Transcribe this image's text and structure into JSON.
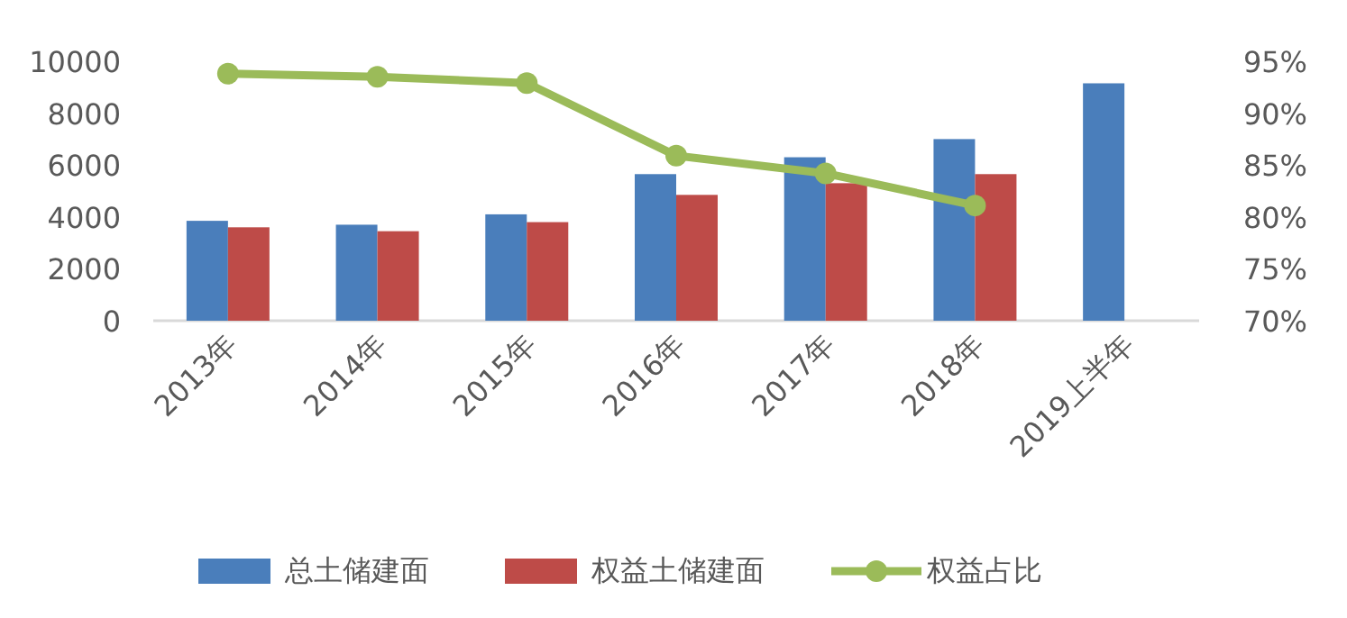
{
  "chart_data": {
    "type": "bar",
    "categories": [
      "2013年",
      "2014年",
      "2015年",
      "2016年",
      "2017年",
      "2018年",
      "2019上半年"
    ],
    "series": [
      {
        "name": "总土储建面",
        "color": "#4a7ebb",
        "values": [
          3850,
          3700,
          4100,
          5650,
          6300,
          7000,
          9150
        ]
      },
      {
        "name": "权益土储建面",
        "color": "#be4b48",
        "values": [
          3600,
          3450,
          3800,
          4850,
          5300,
          5650,
          null
        ]
      },
      {
        "name": "权益占比",
        "type": "line",
        "axis": "y2",
        "color": "#9bbb59",
        "marker": "circle",
        "values": [
          93.8,
          93.5,
          92.9,
          85.9,
          84.2,
          81.1,
          null
        ]
      }
    ],
    "ylim": [
      0,
      10000
    ],
    "yticks": [
      0,
      2000,
      4000,
      6000,
      8000,
      10000
    ],
    "y2lim": [
      70,
      95
    ],
    "y2ticks": [
      {
        "value": 70,
        "label": "70%"
      },
      {
        "value": 75,
        "label": "75%"
      },
      {
        "value": 80,
        "label": "80%"
      },
      {
        "value": 85,
        "label": "85%"
      },
      {
        "value": 90,
        "label": "90%"
      },
      {
        "value": 95,
        "label": "95%"
      }
    ],
    "grid": false,
    "legend": "bottom"
  }
}
